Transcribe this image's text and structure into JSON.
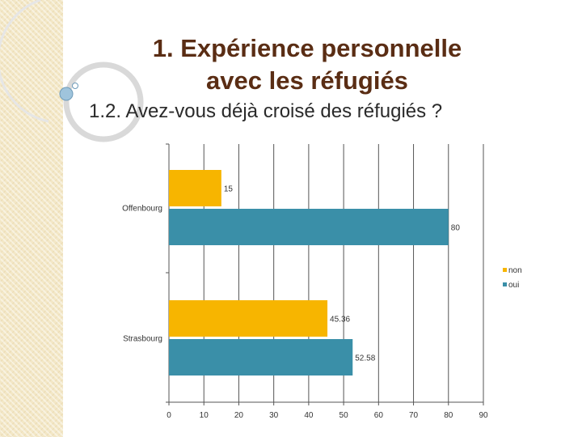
{
  "slide": {
    "title_line1": "1. Expérience personnelle",
    "title_line2": "avec les réfugiés",
    "subtitle": "1.2. Avez-vous déjà croisé des réfugiés ?"
  },
  "colors": {
    "non": "#f7b500",
    "oui": "#3a8fa8",
    "title": "#5a2d14",
    "grid": "#555555"
  },
  "chart_data": {
    "type": "bar",
    "orientation": "horizontal",
    "categories": [
      "Offenbourg",
      "Strasbourg"
    ],
    "series": [
      {
        "name": "non",
        "values": [
          15,
          45.36
        ],
        "labels": [
          "15",
          "45.36"
        ]
      },
      {
        "name": "oui",
        "values": [
          80,
          52.58
        ],
        "labels": [
          "80",
          "52.58"
        ]
      }
    ],
    "xlim": [
      0,
      90
    ],
    "xticks": [
      0,
      10,
      20,
      30,
      40,
      50,
      60,
      70,
      80,
      90
    ],
    "grid": true,
    "legend": {
      "entries": [
        "non",
        "oui"
      ],
      "position": "right"
    }
  }
}
